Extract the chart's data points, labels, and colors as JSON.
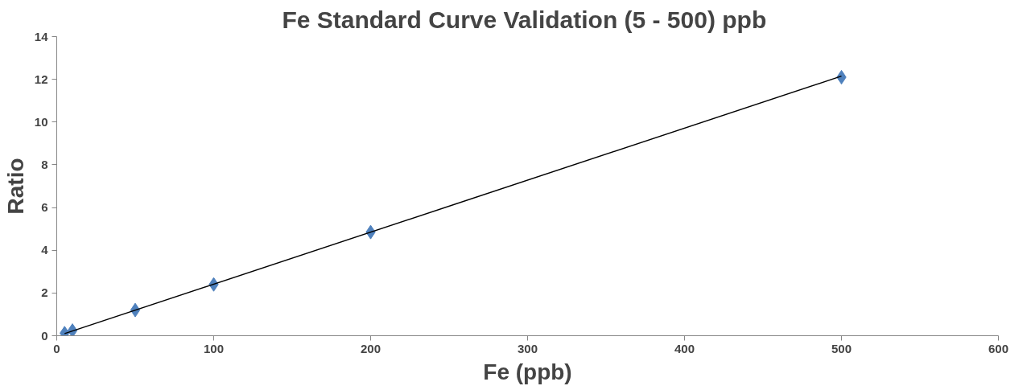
{
  "chart_data": {
    "type": "scatter",
    "title": "Fe Standard  Curve Validation (5 - 500) ppb",
    "xlabel": "Fe (ppb)",
    "ylabel": "Ratio",
    "xlim": [
      0,
      600
    ],
    "ylim": [
      0,
      14
    ],
    "xticks": [
      0,
      100,
      200,
      300,
      400,
      500,
      600
    ],
    "yticks": [
      0,
      2,
      4,
      6,
      8,
      10,
      12,
      14
    ],
    "grid": false,
    "marker": "diamond",
    "series": [
      {
        "color": "#4f81bd",
        "x": [
          5,
          10,
          50,
          100,
          200,
          500
        ],
        "values": [
          0.12,
          0.24,
          1.2,
          2.4,
          4.85,
          12.1
        ]
      },
      {
        "type": "line",
        "color": "#000000",
        "marker": "none",
        "line_style": "solid",
        "x": [
          5,
          500
        ],
        "values": [
          0.1,
          12.15
        ]
      }
    ]
  }
}
